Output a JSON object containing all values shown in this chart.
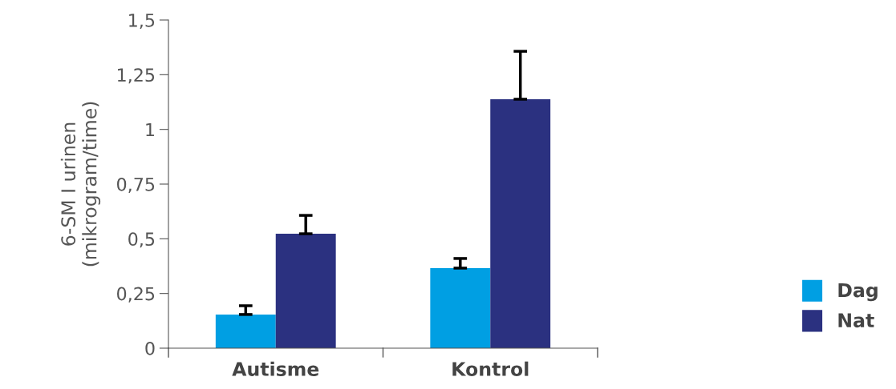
{
  "chart_data": {
    "type": "bar",
    "ylabel": "6-SM I urinen\n(mikrogram/time)",
    "categories": [
      "Autisme",
      "Kontrol"
    ],
    "series": [
      {
        "name": "Dag",
        "color": "#009fe3",
        "values": [
          0.154,
          0.366
        ],
        "errors": [
          [
            0.154,
            0.194
          ],
          [
            0.366,
            0.41
          ]
        ]
      },
      {
        "name": "Nat",
        "color": "#2b3180",
        "values": [
          0.523,
          1.138
        ],
        "errors": [
          [
            0.523,
            0.607
          ],
          [
            1.138,
            1.357
          ]
        ]
      }
    ],
    "ylim": [
      0,
      1.5
    ],
    "yticks": [
      {
        "value": 0,
        "label": "0"
      },
      {
        "value": 0.25,
        "label": "0,25"
      },
      {
        "value": 0.5,
        "label": "0,5"
      },
      {
        "value": 0.75,
        "label": "0,75"
      },
      {
        "value": 1,
        "label": "1"
      },
      {
        "value": 1.25,
        "label": "1,25"
      },
      {
        "value": 1.5,
        "label": "1,5"
      }
    ],
    "grid": false,
    "legend": "bottom right"
  }
}
